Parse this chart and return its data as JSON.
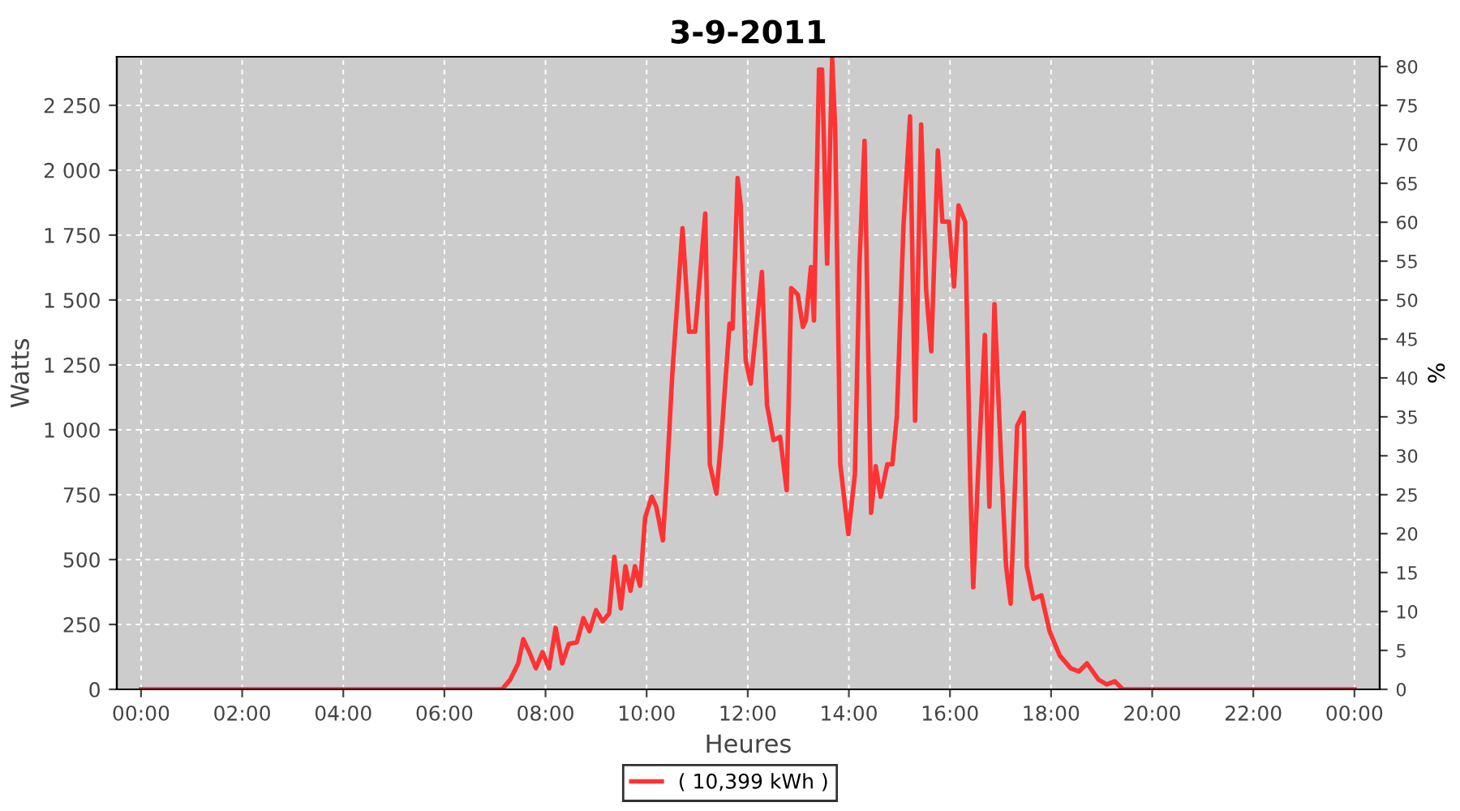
{
  "chart_data": {
    "type": "line",
    "title": "3-9-2011",
    "xlabel": "Heures",
    "ylabel": "Watts",
    "y2label": "%",
    "series": [
      {
        "name": "( 10,399 kWh )",
        "color": "#ff3333",
        "x": [
          0,
          7.14,
          7.3,
          7.46,
          7.56,
          7.68,
          7.81,
          7.94,
          8.07,
          8.2,
          8.33,
          8.46,
          8.62,
          8.75,
          8.87,
          9.0,
          9.13,
          9.26,
          9.36,
          9.49,
          9.58,
          9.68,
          9.77,
          9.87,
          9.97,
          10.1,
          10.19,
          10.32,
          10.39,
          10.51,
          10.71,
          10.84,
          10.96,
          11.16,
          11.25,
          11.38,
          11.48,
          11.64,
          11.7,
          11.8,
          11.86,
          11.96,
          12.06,
          12.28,
          12.38,
          12.51,
          12.64,
          12.77,
          12.86,
          12.99,
          13.09,
          13.15,
          13.25,
          13.31,
          13.41,
          13.47,
          13.57,
          13.67,
          13.73,
          13.83,
          13.99,
          14.12,
          14.21,
          14.31,
          14.44,
          14.53,
          14.63,
          14.76,
          14.86,
          14.95,
          15.08,
          15.21,
          15.31,
          15.43,
          15.53,
          15.63,
          15.76,
          15.85,
          15.98,
          16.08,
          16.17,
          16.3,
          16.4,
          16.46,
          16.56,
          16.69,
          16.78,
          16.88,
          17.01,
          17.11,
          17.2,
          17.33,
          17.46,
          17.52,
          17.65,
          17.81,
          17.97,
          18.17,
          18.39,
          18.55,
          18.71,
          18.94,
          19.1,
          19.26,
          19.42,
          24
        ],
        "values": [
          0,
          0,
          37,
          100,
          193,
          143,
          81,
          143,
          81,
          237,
          100,
          175,
          181,
          274,
          224,
          305,
          262,
          293,
          511,
          312,
          474,
          380,
          474,
          399,
          661,
          742,
          704,
          574,
          785,
          1222,
          1777,
          1378,
          1378,
          1833,
          867,
          754,
          973,
          1409,
          1390,
          1970,
          1864,
          1266,
          1178,
          1608,
          1097,
          960,
          973,
          767,
          1546,
          1521,
          1396,
          1421,
          1627,
          1421,
          2388,
          2388,
          1640,
          2430,
          2157,
          867,
          598,
          829,
          1640,
          2113,
          680,
          860,
          742,
          867,
          867,
          1054,
          1783,
          2207,
          1035,
          2176,
          1534,
          1303,
          2076,
          1802,
          1802,
          1552,
          1864,
          1802,
          804,
          393,
          848,
          1365,
          704,
          1484,
          891,
          474,
          330,
          1016,
          1066,
          474,
          349,
          362,
          224,
          131,
          81,
          69,
          100,
          37,
          19,
          31,
          0,
          0
        ]
      }
    ],
    "xlim": [
      -0.48,
      24.5
    ],
    "ylim": [
      0,
      2437
    ],
    "y2lim": [
      0,
      81.25
    ],
    "xticks": [
      {
        "value": 0,
        "label": "00:00"
      },
      {
        "value": 2,
        "label": "02:00"
      },
      {
        "value": 4,
        "label": "04:00"
      },
      {
        "value": 6,
        "label": "06:00"
      },
      {
        "value": 8,
        "label": "08:00"
      },
      {
        "value": 10,
        "label": "10:00"
      },
      {
        "value": 12,
        "label": "12:00"
      },
      {
        "value": 14,
        "label": "14:00"
      },
      {
        "value": 16,
        "label": "16:00"
      },
      {
        "value": 18,
        "label": "18:00"
      },
      {
        "value": 20,
        "label": "20:00"
      },
      {
        "value": 22,
        "label": "22:00"
      },
      {
        "value": 24,
        "label": "00:00"
      }
    ],
    "yticks": [
      0,
      250,
      500,
      750,
      {
        "value": 1000,
        "label": "1 000"
      },
      {
        "value": 1250,
        "label": "1 250"
      },
      {
        "value": 1500,
        "label": "1 500"
      },
      {
        "value": 1750,
        "label": "1 750"
      },
      {
        "value": 2000,
        "label": "2 000"
      },
      {
        "value": 2250,
        "label": "2 250"
      }
    ],
    "y2ticks": [
      0,
      5,
      10,
      15,
      20,
      25,
      30,
      35,
      40,
      45,
      50,
      55,
      60,
      65,
      70,
      75,
      80
    ],
    "grid": true,
    "legend": "bottom",
    "marker": "none",
    "line_style": "solid"
  }
}
